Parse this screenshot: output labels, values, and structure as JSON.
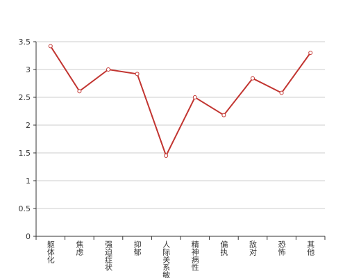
{
  "chart_data": {
    "type": "line",
    "categories": [
      "躯体化",
      "焦虑",
      "强迫症状",
      "抑郁",
      "人际关系敏感",
      "精神病性",
      "偏执",
      "敌对",
      "恐怖",
      "其他"
    ],
    "series": [
      {
        "color": "#c23531",
        "values": [
          3.42,
          2.61,
          3.0,
          2.92,
          1.45,
          2.5,
          2.18,
          2.84,
          2.58,
          3.3
        ]
      }
    ],
    "ylim": [
      0,
      3.5
    ],
    "yticks": [
      0,
      0.5,
      1,
      1.5,
      2,
      2.5,
      3,
      3.5
    ],
    "grid": true
  }
}
